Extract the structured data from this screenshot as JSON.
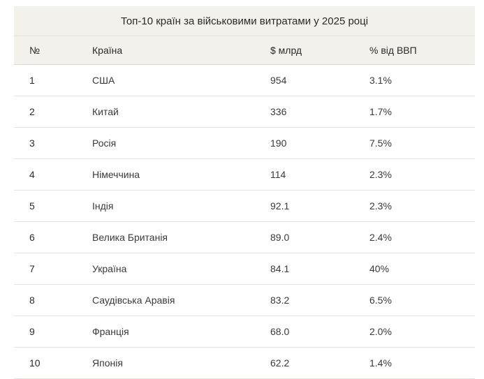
{
  "table": {
    "caption": "Топ-10 країн за військовими витратами у 2025 році",
    "headers": [
      "№",
      "Країна",
      "$ млрд",
      "% від ВВП"
    ],
    "rows": [
      {
        "rank": "1",
        "country": "США",
        "spend": "954",
        "gdp": "3.1%"
      },
      {
        "rank": "2",
        "country": "Китай",
        "spend": "336",
        "gdp": "1.7%"
      },
      {
        "rank": "3",
        "country": "Росія",
        "spend": "190",
        "gdp": "7.5%"
      },
      {
        "rank": "4",
        "country": "Німеччина",
        "spend": "114",
        "gdp": "2.3%"
      },
      {
        "rank": "5",
        "country": "Індія",
        "spend": "92.1",
        "gdp": "2.3%"
      },
      {
        "rank": "6",
        "country": "Велика Британія",
        "spend": "89.0",
        "gdp": "2.4%"
      },
      {
        "rank": "7",
        "country": "Україна",
        "spend": "84.1",
        "gdp": "40%"
      },
      {
        "rank": "8",
        "country": "Саудівська Аравія",
        "spend": "83.2",
        "gdp": "6.5%"
      },
      {
        "rank": "9",
        "country": "Франція",
        "spend": "68.0",
        "gdp": "2.0%"
      },
      {
        "rank": "10",
        "country": "Японія",
        "spend": "62.2",
        "gdp": "1.4%"
      }
    ]
  }
}
